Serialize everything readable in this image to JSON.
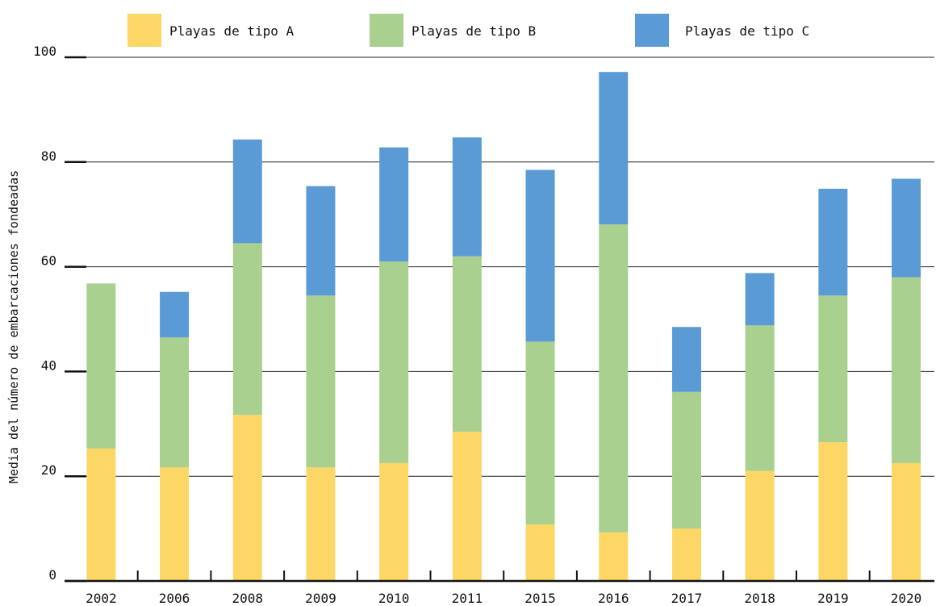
{
  "chart_data": {
    "type": "bar",
    "stacked": true,
    "title": "",
    "xlabel": "",
    "ylabel": "Media del número de embarcaciones fondeadas",
    "ylim": [
      0,
      100
    ],
    "yticks": [
      0,
      20,
      40,
      60,
      80,
      100
    ],
    "grid": "horizontal",
    "legend_position": "top",
    "categories": [
      "2002",
      "2006",
      "2008",
      "2009",
      "2010",
      "2011",
      "2015",
      "2016",
      "2017",
      "2018",
      "2019",
      "2020"
    ],
    "series": [
      {
        "name": "Playas de tipo A",
        "color": "#fdd766",
        "values": [
          25.3,
          21.7,
          31.7,
          21.7,
          22.5,
          28.5,
          10.8,
          9.3,
          10.0,
          21.0,
          26.5,
          22.5
        ]
      },
      {
        "name": "Playas de tipo B",
        "color": "#a9d08e",
        "values": [
          31.5,
          24.8,
          32.8,
          32.8,
          38.5,
          33.5,
          34.9,
          58.8,
          26.1,
          27.8,
          28.0,
          35.5
        ]
      },
      {
        "name": "Playas de tipo C",
        "color": "#5b9bd5",
        "values": [
          0,
          8.7,
          19.8,
          20.9,
          21.8,
          22.7,
          32.8,
          29.1,
          12.4,
          10.0,
          20.4,
          18.8
        ]
      }
    ]
  }
}
